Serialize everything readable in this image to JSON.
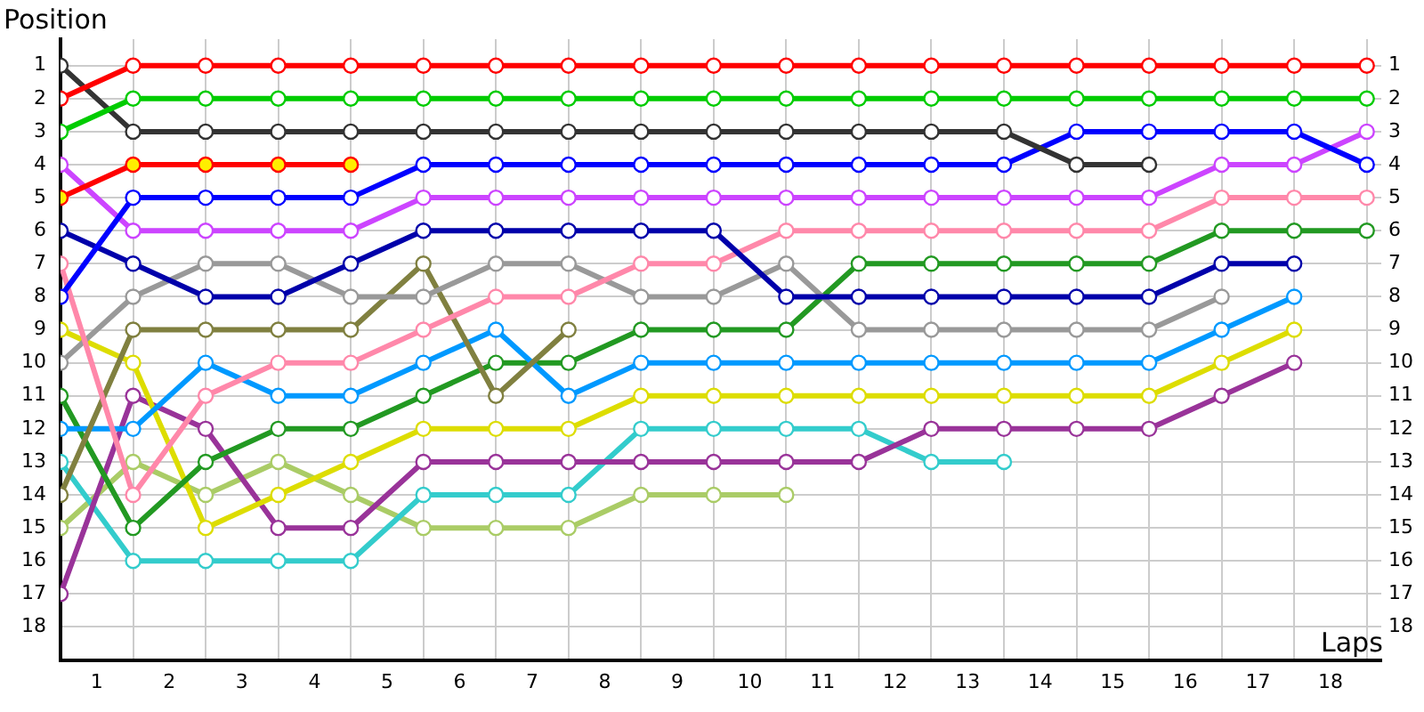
{
  "chart_data": {
    "type": "line",
    "ylabel": "Position",
    "xlabel": "Laps",
    "x": [
      0,
      1,
      2,
      3,
      4,
      5,
      6,
      7,
      8,
      9,
      10,
      11,
      12,
      13,
      14,
      15,
      16,
      17,
      18
    ],
    "series": [
      {
        "color": "#ff0000",
        "values": [
          2,
          1,
          1,
          1,
          1,
          1,
          1,
          1,
          1,
          1,
          1,
          1,
          1,
          1,
          1,
          1,
          1,
          1,
          1
        ]
      },
      {
        "color": "#00cc00",
        "values": [
          3,
          2,
          2,
          2,
          2,
          2,
          2,
          2,
          2,
          2,
          2,
          2,
          2,
          2,
          2,
          2,
          2,
          2,
          2
        ]
      },
      {
        "color": "#333333",
        "values": [
          1,
          3,
          3,
          3,
          3,
          3,
          3,
          3,
          3,
          3,
          3,
          3,
          3,
          3,
          4,
          4,
          null,
          null,
          null
        ]
      },
      {
        "color": "#ff0000",
        "colors": [
          "#ffee00",
          "#ffee00",
          "#ffee00",
          "#ffee00",
          "#ffee00",
          null,
          null,
          null,
          null,
          null,
          null,
          null,
          null,
          null,
          null,
          null,
          null,
          null,
          null
        ],
        "values": [
          5,
          4,
          4,
          4,
          4,
          null,
          null,
          null,
          null,
          null,
          null,
          null,
          null,
          null,
          null,
          null,
          null,
          null,
          null
        ]
      },
      {
        "color": "#0000ff",
        "values": [
          8,
          5,
          5,
          5,
          5,
          4,
          4,
          4,
          4,
          4,
          4,
          4,
          4,
          4,
          3,
          3,
          3,
          3,
          4
        ]
      },
      {
        "color": "#cc44ff",
        "values": [
          4,
          6,
          6,
          6,
          6,
          5,
          5,
          5,
          5,
          5,
          5,
          5,
          5,
          5,
          5,
          5,
          4,
          4,
          3
        ]
      },
      {
        "color": "#0000aa",
        "values": [
          6,
          7,
          8,
          8,
          7,
          6,
          6,
          6,
          6,
          6,
          8,
          8,
          8,
          8,
          8,
          8,
          7,
          7,
          null
        ]
      },
      {
        "color": "#ff88aa",
        "values": [
          7,
          14,
          11,
          10,
          10,
          9,
          8,
          8,
          7,
          7,
          6,
          6,
          6,
          6,
          6,
          6,
          5,
          5,
          5
        ]
      },
      {
        "color": "#999999",
        "values": [
          10,
          8,
          7,
          7,
          8,
          8,
          7,
          7,
          8,
          8,
          7,
          9,
          9,
          9,
          9,
          9,
          8,
          null,
          null
        ]
      },
      {
        "color": "#808040",
        "values": [
          14,
          9,
          9,
          9,
          9,
          7,
          11,
          9,
          null,
          null,
          null,
          null,
          null,
          null,
          null,
          null,
          null,
          null,
          null
        ]
      },
      {
        "color": "#0099ff",
        "values": [
          12,
          12,
          10,
          11,
          11,
          10,
          9,
          11,
          10,
          10,
          10,
          10,
          10,
          10,
          10,
          10,
          9,
          8,
          null
        ]
      },
      {
        "color": "#229922",
        "values": [
          11,
          15,
          13,
          12,
          12,
          11,
          10,
          10,
          9,
          9,
          9,
          7,
          7,
          7,
          7,
          7,
          6,
          6,
          6
        ]
      },
      {
        "color": "#dddd00",
        "values": [
          9,
          10,
          15,
          14,
          13,
          12,
          12,
          12,
          11,
          11,
          11,
          11,
          11,
          11,
          11,
          11,
          10,
          9,
          null
        ]
      },
      {
        "color": "#993399",
        "values": [
          17,
          11,
          12,
          15,
          15,
          13,
          13,
          13,
          13,
          13,
          13,
          13,
          12,
          12,
          12,
          12,
          11,
          10,
          null
        ]
      },
      {
        "color": "#33cccc",
        "values": [
          13,
          16,
          16,
          16,
          16,
          14,
          14,
          14,
          12,
          12,
          12,
          12,
          13,
          13,
          null,
          null,
          null,
          null,
          null
        ]
      },
      {
        "color": "#aacc66",
        "values": [
          15,
          13,
          14,
          13,
          14,
          15,
          15,
          15,
          14,
          14,
          14,
          null,
          null,
          null,
          null,
          null,
          null,
          null,
          null
        ]
      }
    ],
    "xlim": [
      0,
      18.2
    ],
    "xticks": [
      {
        "value": 0,
        "label": null
      },
      {
        "value": 0.5,
        "label": "1"
      },
      {
        "value": 1,
        "label": null
      },
      {
        "value": 1.5,
        "label": "2"
      },
      {
        "value": 2,
        "label": null
      },
      {
        "value": 2.5,
        "label": "3"
      },
      {
        "value": 3,
        "label": null
      },
      {
        "value": 3.5,
        "label": "4"
      },
      {
        "value": 4,
        "label": null
      },
      {
        "value": 4.5,
        "label": "5"
      },
      {
        "value": 5,
        "label": null
      },
      {
        "value": 5.5,
        "label": "6"
      },
      {
        "value": 6,
        "label": null
      },
      {
        "value": 6.5,
        "label": "7"
      },
      {
        "value": 7,
        "label": null
      },
      {
        "value": 7.5,
        "label": "8"
      },
      {
        "value": 8,
        "label": null
      },
      {
        "value": 8.5,
        "label": "9"
      },
      {
        "value": 9,
        "label": null
      },
      {
        "value": 9.5,
        "label": "10"
      },
      {
        "value": 10,
        "label": null
      },
      {
        "value": 10.5,
        "label": "11"
      },
      {
        "value": 11,
        "label": null
      },
      {
        "value": 11.5,
        "label": "12"
      },
      {
        "value": 12,
        "label": null
      },
      {
        "value": 12.5,
        "label": "13"
      },
      {
        "value": 13,
        "label": null
      },
      {
        "value": 13.5,
        "label": "14"
      },
      {
        "value": 14,
        "label": null
      },
      {
        "value": 14.5,
        "label": "15"
      },
      {
        "value": 15,
        "label": null
      },
      {
        "value": 15.5,
        "label": "16"
      },
      {
        "value": 16,
        "label": null
      },
      {
        "value": 16.5,
        "label": "17"
      },
      {
        "value": 17,
        "label": null
      },
      {
        "value": 17.5,
        "label": "18"
      },
      {
        "value": 18,
        "label": null
      }
    ],
    "ylim": [
      19,
      0.2
    ],
    "yticks": [
      1,
      2,
      3,
      4,
      5,
      6,
      7,
      8,
      9,
      10,
      11,
      12,
      13,
      14,
      15,
      16,
      17,
      18
    ],
    "y2lim": [
      19,
      0.2
    ],
    "y2ticks": [
      1,
      2,
      3,
      4,
      5,
      6,
      7,
      8,
      9,
      10,
      11,
      12,
      13,
      14,
      15,
      16,
      17,
      18
    ],
    "grid": true,
    "legend": false,
    "marker": "circle",
    "line_style": "solid"
  }
}
